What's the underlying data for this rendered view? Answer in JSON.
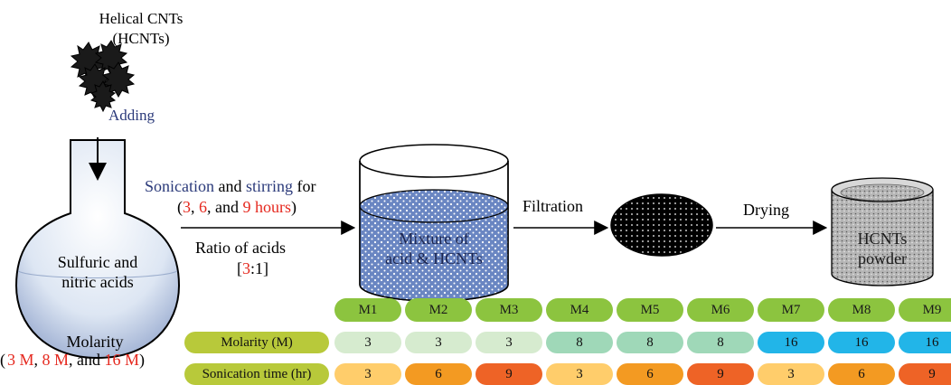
{
  "source": {
    "line1": "Helical CNTs",
    "line2": "(HCNTs)"
  },
  "adding_label": "Adding",
  "flask": {
    "line1": "Sulfuric and",
    "line2": "nitric acids"
  },
  "molarity": {
    "title": "Molarity",
    "values": [
      "3 M",
      "8 M",
      "16 M"
    ],
    "sep1": ", ",
    "sep2": ", and "
  },
  "sonication": {
    "word1": "Sonication",
    "word2": " and ",
    "word3": "stirring",
    "word4": " for",
    "open": "(",
    "h1": "3",
    "h2": "6",
    "h3": "9 hours",
    "sep1": ", ",
    "sep2": ", and ",
    "close": ")"
  },
  "ratio": {
    "label": "Ratio of acids",
    "open": "[",
    "a": "3",
    "colon": ":1]"
  },
  "beaker_label": {
    "line1": "Mixture of",
    "line2": "acid & HCNTs"
  },
  "filtration_label": "Filtration",
  "drying_label": "Drying",
  "powder_label": {
    "line1": "HCNTs",
    "line2": "powder"
  },
  "table": {
    "headers": [
      "M1",
      "M2",
      "M3",
      "M4",
      "M5",
      "M6",
      "M7",
      "M8",
      "M9"
    ],
    "rows": [
      {
        "label": "Molarity (M)",
        "values": [
          "3",
          "3",
          "3",
          "8",
          "8",
          "8",
          "16",
          "16",
          "16"
        ]
      },
      {
        "label": "Sonication time (hr)",
        "values": [
          "3",
          "6",
          "9",
          "3",
          "6",
          "9",
          "3",
          "6",
          "9"
        ]
      }
    ]
  },
  "colors": {
    "header_pill": "#8cc43f",
    "row_label_pill": "#b8c93a",
    "molarity_3": "#d6ebcf",
    "molarity_8": "#9fd8b8",
    "molarity_16": "#22b5e8",
    "time_3": "#ffcd6b",
    "time_6": "#f39a22",
    "time_9": "#ee6326",
    "text_blue": "#2b3a7a",
    "text_red": "#e5281e"
  }
}
